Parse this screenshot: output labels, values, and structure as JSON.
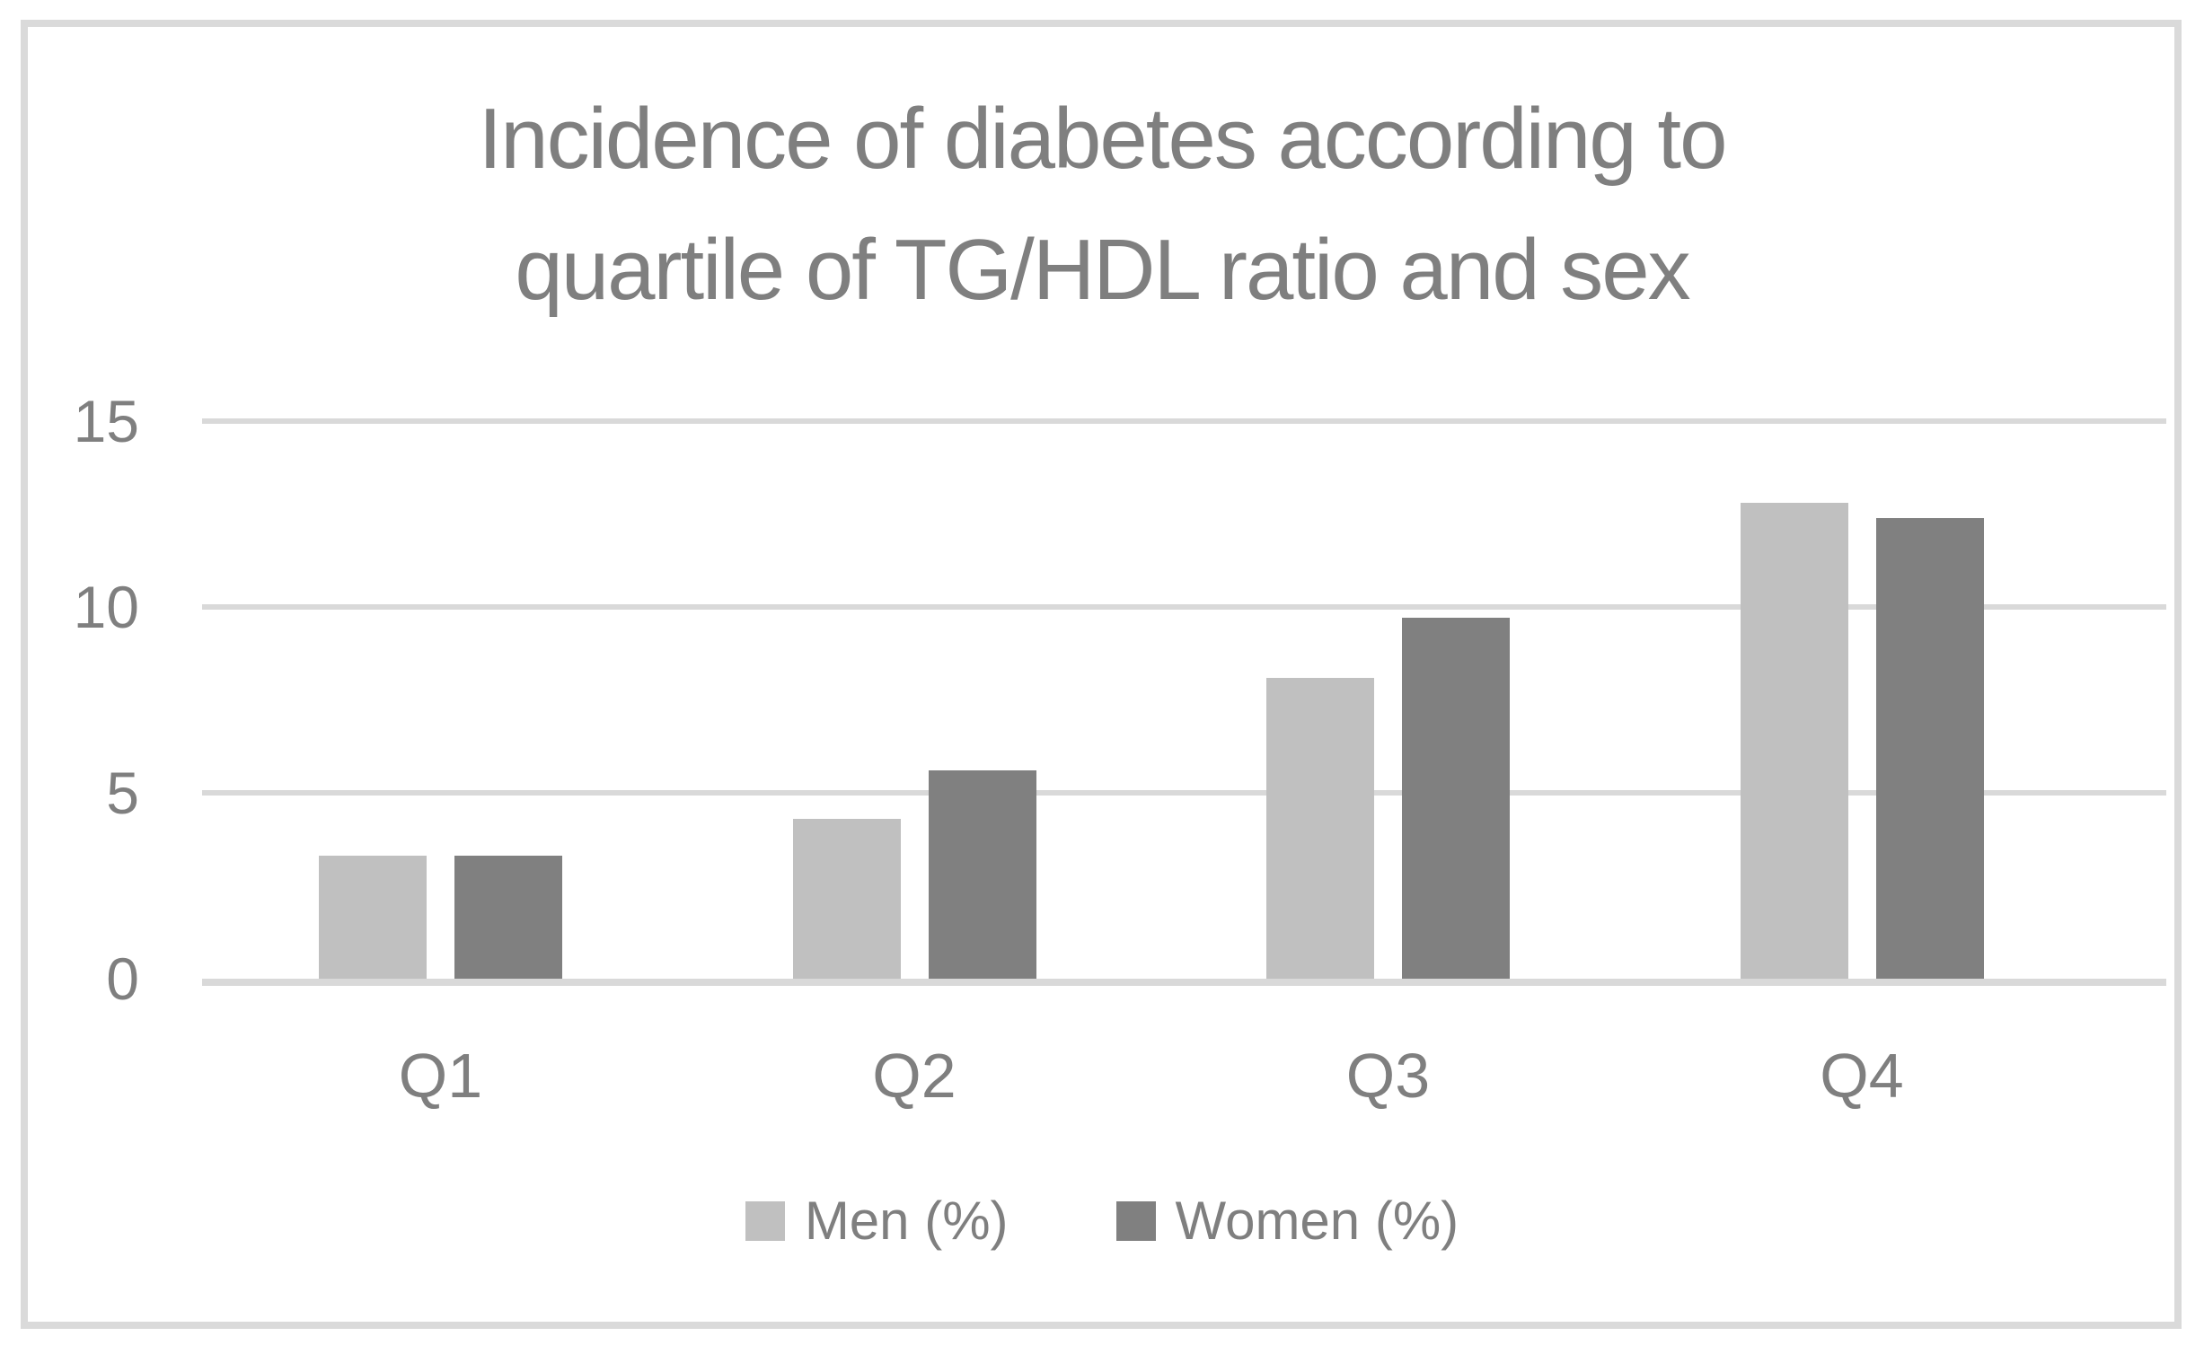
{
  "figure": {
    "title_lines": [
      "Incidence of diabetes according to",
      "quartile of TG/HDL ratio and sex"
    ],
    "border_color": "#dadada"
  },
  "chart_data": {
    "type": "bar",
    "title": "Incidence of diabetes according to quartile of TG/HDL ratio and sex",
    "categories": [
      "Q1",
      "Q2",
      "Q3",
      "Q4"
    ],
    "series": [
      {
        "name": "Men (%)",
        "color": "#c0c0c0",
        "values": [
          3.3,
          4.3,
          8.1,
          12.8
        ]
      },
      {
        "name": "Women (%)",
        "color": "#808080",
        "values": [
          3.3,
          5.6,
          9.7,
          12.4
        ]
      }
    ],
    "xlabel": "",
    "ylabel": "",
    "ylim": [
      0,
      15
    ],
    "yticks": [
      0,
      5,
      10,
      15
    ],
    "grid": true,
    "gridline_color": "#d9d9d9",
    "axis_line_color": "#d9d9d9",
    "text_color": "#7f7f7f",
    "legend_position": "bottom",
    "legend": [
      "Men (%)",
      "Women (%)"
    ]
  }
}
